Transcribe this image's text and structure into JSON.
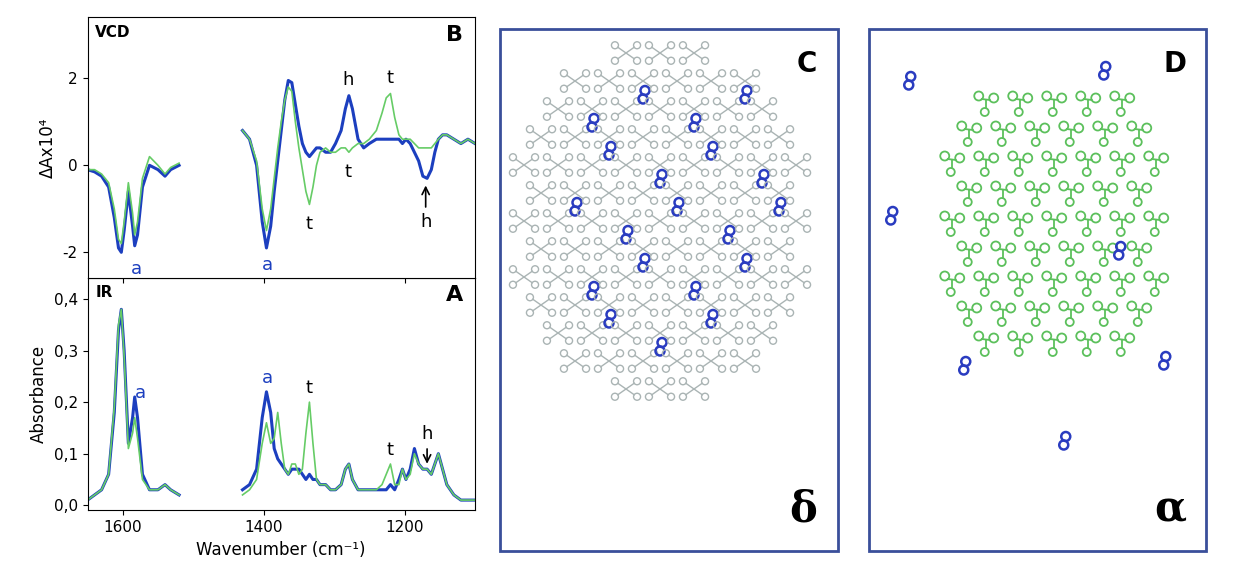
{
  "chart_data": [
    {
      "type": "line",
      "panel": "A",
      "title": "IR",
      "x_label": "Wavenumber (cm⁻¹)",
      "y_label": "Absorbance",
      "xlim": [
        1650,
        1100
      ],
      "xticks": [
        1600,
        1400,
        1200
      ],
      "ylim": [
        -0.01,
        0.44
      ],
      "yticks": [
        {
          "value": 0.0,
          "label": "0,0"
        },
        {
          "value": 0.1,
          "label": "0,1"
        },
        {
          "value": 0.2,
          "label": "0,2"
        },
        {
          "value": 0.3,
          "label": "0,3"
        },
        {
          "value": 0.4,
          "label": "0,4"
        }
      ],
      "x": [
        1650,
        1640,
        1630,
        1620,
        1612,
        1606,
        1602,
        1598,
        1592,
        1586,
        1583,
        1579,
        1572,
        1562,
        1550,
        1540,
        1532,
        1520,
        1475,
        1430,
        1420,
        1410,
        1402,
        1396,
        1390,
        1385,
        1380,
        1375,
        1370,
        1365,
        1360,
        1355,
        1350,
        1345,
        1340,
        1335,
        1330,
        1325,
        1320,
        1312,
        1305,
        1298,
        1290,
        1284,
        1279,
        1274,
        1266,
        1258,
        1250,
        1240,
        1232,
        1226,
        1220,
        1214,
        1208,
        1203,
        1198,
        1192,
        1186,
        1180,
        1174,
        1168,
        1162,
        1157,
        1152,
        1146,
        1140,
        1130,
        1120,
        1110,
        1100
      ],
      "series": [
        {
          "color": "#1c3fbf",
          "values": [
            0.01,
            0.02,
            0.03,
            0.06,
            0.18,
            0.34,
            0.38,
            0.3,
            0.12,
            0.17,
            0.21,
            0.17,
            0.06,
            0.03,
            0.03,
            0.04,
            0.03,
            0.02,
            null,
            0.03,
            0.04,
            0.07,
            0.17,
            0.22,
            0.18,
            0.11,
            0.09,
            0.08,
            0.07,
            0.06,
            0.07,
            0.07,
            0.07,
            0.06,
            0.05,
            0.06,
            0.05,
            0.05,
            0.04,
            0.04,
            0.03,
            0.03,
            0.04,
            0.07,
            0.08,
            0.05,
            0.03,
            0.03,
            0.03,
            0.03,
            0.03,
            0.03,
            0.04,
            0.03,
            0.05,
            0.07,
            0.05,
            0.07,
            0.11,
            0.08,
            0.07,
            0.07,
            0.06,
            0.08,
            0.1,
            0.07,
            0.04,
            0.02,
            0.01,
            0.01,
            0.01
          ]
        },
        {
          "color": "#66cc66",
          "values": [
            0.01,
            0.02,
            0.03,
            0.06,
            0.19,
            0.35,
            0.38,
            0.29,
            0.11,
            0.14,
            0.17,
            0.13,
            0.05,
            0.03,
            0.03,
            0.04,
            0.03,
            0.02,
            null,
            0.02,
            0.03,
            0.05,
            0.12,
            0.16,
            0.12,
            0.13,
            0.18,
            0.12,
            0.07,
            0.06,
            0.08,
            0.08,
            0.06,
            0.07,
            0.14,
            0.2,
            0.12,
            0.05,
            0.04,
            0.04,
            0.03,
            0.03,
            0.04,
            0.07,
            0.08,
            0.05,
            0.03,
            0.03,
            0.03,
            0.03,
            0.04,
            0.06,
            0.08,
            0.04,
            0.04,
            0.07,
            0.05,
            0.06,
            0.1,
            0.08,
            0.07,
            0.07,
            0.06,
            0.08,
            0.1,
            0.07,
            0.04,
            0.02,
            0.01,
            0.01,
            0.01
          ]
        }
      ],
      "annotations": [
        {
          "text": "a",
          "x": 1575,
          "y": 0.2,
          "color": "#1c3fbf"
        },
        {
          "text": "a",
          "x": 1395,
          "y": 0.23,
          "color": "#1c3fbf"
        },
        {
          "text": "t",
          "x": 1335,
          "y": 0.21,
          "color": "#000000"
        },
        {
          "text": "t",
          "x": 1220,
          "y": 0.09,
          "color": "#000000"
        },
        {
          "text": "h",
          "x": 1168,
          "y": 0.12,
          "color": "#000000",
          "arrow_to": [
            1168,
            0.075
          ]
        }
      ]
    },
    {
      "type": "line",
      "panel": "B",
      "title": "VCD",
      "tick_labels": "y",
      "y_label": "ΔAx10⁴",
      "xlim": [
        1650,
        1100
      ],
      "xticks": [
        1600,
        1400,
        1200
      ],
      "ylim": [
        -2.6,
        3.4
      ],
      "yticks": [
        -2,
        0,
        2
      ],
      "x": [
        1650,
        1640,
        1630,
        1620,
        1612,
        1606,
        1602,
        1598,
        1592,
        1586,
        1583,
        1579,
        1572,
        1562,
        1550,
        1540,
        1532,
        1520,
        1475,
        1430,
        1420,
        1410,
        1402,
        1396,
        1390,
        1385,
        1380,
        1375,
        1370,
        1365,
        1360,
        1355,
        1350,
        1345,
        1340,
        1335,
        1330,
        1325,
        1320,
        1312,
        1305,
        1298,
        1290,
        1284,
        1279,
        1274,
        1266,
        1258,
        1250,
        1240,
        1232,
        1226,
        1220,
        1214,
        1208,
        1203,
        1198,
        1192,
        1186,
        1180,
        1174,
        1168,
        1162,
        1157,
        1152,
        1146,
        1140,
        1130,
        1120,
        1110,
        1100
      ],
      "series": [
        {
          "color": "#1c3fbf",
          "values": [
            -0.1,
            -0.15,
            -0.25,
            -0.5,
            -1.2,
            -1.9,
            -2.0,
            -1.5,
            -0.6,
            -1.4,
            -1.85,
            -1.6,
            -0.5,
            0.0,
            -0.1,
            -0.25,
            -0.1,
            0.0,
            null,
            0.8,
            0.6,
            0.0,
            -1.3,
            -1.9,
            -1.4,
            -0.6,
            0.1,
            0.8,
            1.5,
            1.95,
            1.9,
            1.4,
            0.9,
            0.5,
            0.3,
            0.2,
            0.3,
            0.4,
            0.4,
            0.3,
            0.3,
            0.5,
            0.8,
            1.3,
            1.6,
            1.3,
            0.6,
            0.4,
            0.5,
            0.6,
            0.6,
            0.6,
            0.6,
            0.6,
            0.6,
            0.5,
            0.6,
            0.5,
            0.3,
            0.1,
            -0.25,
            -0.3,
            -0.1,
            0.3,
            0.6,
            0.7,
            0.7,
            0.6,
            0.5,
            0.6,
            0.5
          ]
        },
        {
          "color": "#66cc66",
          "values": [
            -0.1,
            -0.1,
            -0.2,
            -0.4,
            -1.0,
            -1.7,
            -1.8,
            -1.3,
            -0.4,
            -1.1,
            -1.6,
            -1.3,
            -0.3,
            0.2,
            0.0,
            -0.2,
            -0.05,
            0.05,
            null,
            0.8,
            0.6,
            0.1,
            -1.0,
            -1.5,
            -1.0,
            -0.3,
            0.4,
            1.0,
            1.5,
            1.8,
            1.7,
            1.0,
            0.4,
            -0.1,
            -0.6,
            -0.9,
            -0.5,
            0.0,
            0.3,
            0.4,
            0.3,
            0.3,
            0.4,
            0.4,
            0.3,
            0.4,
            0.5,
            0.5,
            0.6,
            0.8,
            1.2,
            1.55,
            1.65,
            1.1,
            0.7,
            0.6,
            0.6,
            0.6,
            0.5,
            0.4,
            0.4,
            0.4,
            0.4,
            0.5,
            0.6,
            0.7,
            0.7,
            0.6,
            0.5,
            0.6,
            0.5
          ]
        }
      ],
      "annotations": [
        {
          "text": "a",
          "x": 1580,
          "y": -2.58,
          "color": "#1c3fbf"
        },
        {
          "text": "a",
          "x": 1395,
          "y": -2.5,
          "color": "#1c3fbf"
        },
        {
          "text": "h",
          "x": 1280,
          "y": 1.75,
          "color": "#000000"
        },
        {
          "text": "t",
          "x": 1220,
          "y": 1.8,
          "color": "#000000"
        },
        {
          "text": "t",
          "x": 1335,
          "y": -1.55,
          "color": "#000000"
        },
        {
          "text": "t",
          "x": 1280,
          "y": -0.35,
          "color": "#000000"
        },
        {
          "text": "h",
          "x": 1170,
          "y": -1.5,
          "color": "#000000",
          "arrow_to": [
            1170,
            -0.4
          ]
        }
      ]
    }
  ],
  "diagrams": [
    {
      "panel": "C",
      "label": "δ"
    },
    {
      "panel": "D",
      "label": "α"
    }
  ]
}
